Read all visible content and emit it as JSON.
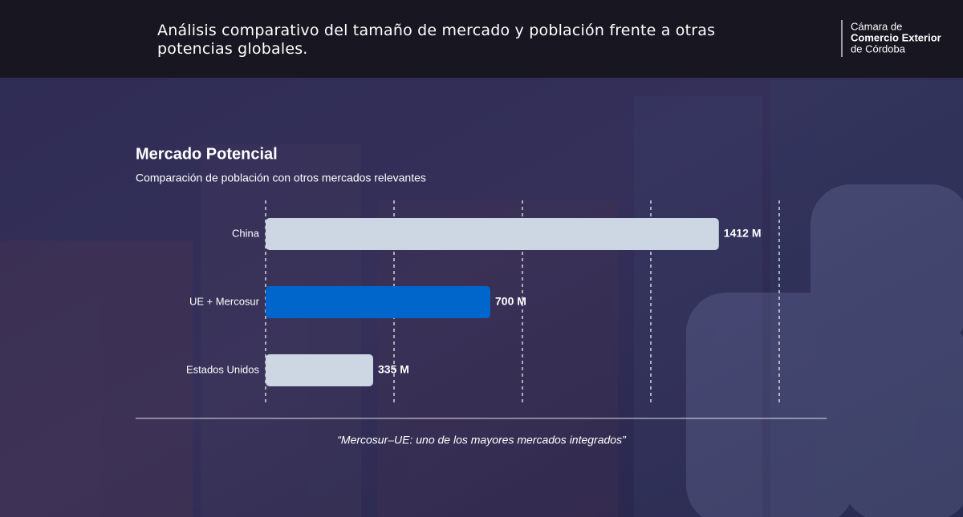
{
  "header": {
    "title": "Análisis comparativo del tamaño de mercado y población frente a otras potencias globales.",
    "logo": [
      "Cámara de",
      "Comercio Exterior",
      "de Córdoba"
    ]
  },
  "chart_data": {
    "type": "hbar",
    "title": "Mercado Potencial",
    "subtitle": "Comparación de población con otros mercados relevantes",
    "categories": [
      "China",
      "UE + Mercosur",
      "Estados Unidos"
    ],
    "values": [
      1412,
      700,
      335
    ],
    "value_labels": [
      "1412 M",
      "700 M",
      "335 M"
    ],
    "colors": [
      "#cdd6e3",
      "#0066cc",
      "#cdd6e3"
    ],
    "xlim": [
      0,
      1600
    ],
    "xticks": [
      0,
      400,
      800,
      1200,
      1600
    ],
    "grid": true
  },
  "quote": "“Mercosur–UE: uno de los mayores mercados integrados”"
}
